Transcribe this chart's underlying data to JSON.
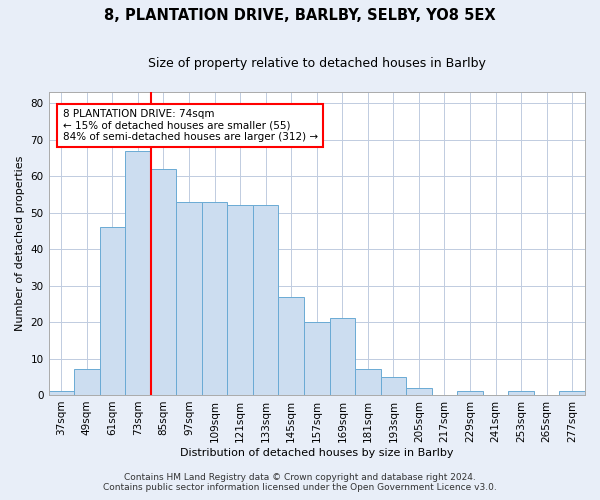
{
  "title": "8, PLANTATION DRIVE, BARLBY, SELBY, YO8 5EX",
  "subtitle": "Size of property relative to detached houses in Barlby",
  "xlabel": "Distribution of detached houses by size in Barlby",
  "ylabel": "Number of detached properties",
  "categories": [
    "37sqm",
    "49sqm",
    "61sqm",
    "73sqm",
    "85sqm",
    "97sqm",
    "109sqm",
    "121sqm",
    "133sqm",
    "145sqm",
    "157sqm",
    "169sqm",
    "181sqm",
    "193sqm",
    "205sqm",
    "217sqm",
    "229sqm",
    "241sqm",
    "253sqm",
    "265sqm",
    "277sqm"
  ],
  "values": [
    1,
    7,
    46,
    67,
    62,
    53,
    53,
    52,
    52,
    27,
    20,
    21,
    7,
    5,
    2,
    0,
    1,
    0,
    1,
    0,
    1
  ],
  "bar_color": "#ccddf0",
  "bar_edge_color": "#6aaad4",
  "red_line_x": 3.5,
  "annotation_line1": "8 PLANTATION DRIVE: 74sqm",
  "annotation_line2": "← 15% of detached houses are smaller (55)",
  "annotation_line3": "84% of semi-detached houses are larger (312) →",
  "annotation_box_color": "white",
  "annotation_box_edge_color": "red",
  "ylim": [
    0,
    83
  ],
  "yticks": [
    0,
    10,
    20,
    30,
    40,
    50,
    60,
    70,
    80
  ],
  "footer_line1": "Contains HM Land Registry data © Crown copyright and database right 2024.",
  "footer_line2": "Contains public sector information licensed under the Open Government Licence v3.0.",
  "background_color": "#e8eef8",
  "plot_background_color": "white",
  "grid_color": "#c0cce0",
  "title_fontsize": 10.5,
  "subtitle_fontsize": 9,
  "axis_label_fontsize": 8,
  "tick_fontsize": 7.5,
  "footer_fontsize": 6.5
}
